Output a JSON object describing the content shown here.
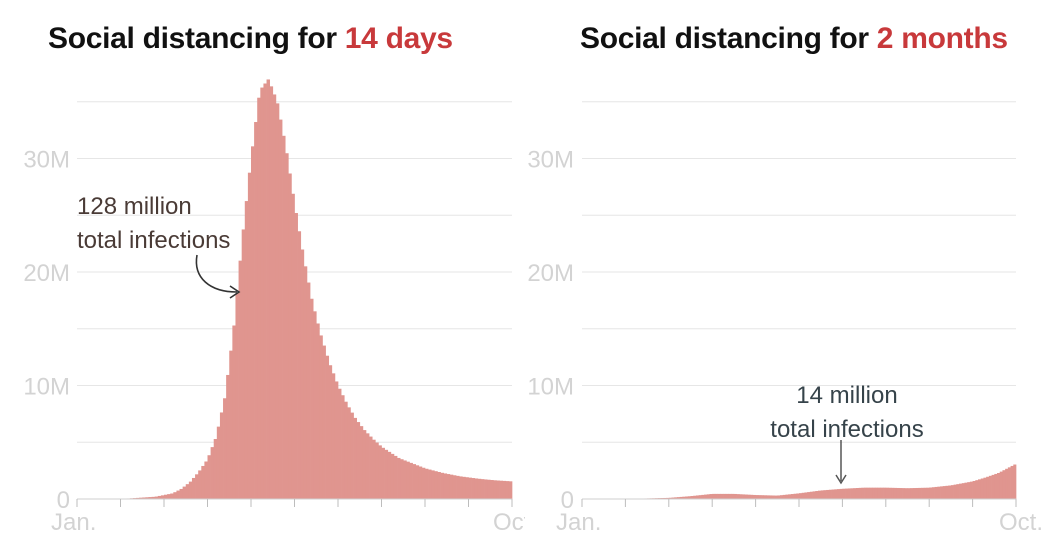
{
  "colors": {
    "bar": "#e0958f",
    "highlight": "#c8393b",
    "grid": "#e6e6e6",
    "axis_text": "#d3d3d3",
    "note_left": "#4a3b36",
    "note_right": "#36434a"
  },
  "chart_data": [
    {
      "type": "area",
      "title_prefix": "Social distancing for ",
      "title_highlight": "14 days",
      "xlabel": "",
      "ylabel": "",
      "x_tick_labels": [
        "Jan.",
        "Oct."
      ],
      "y_ticks": [
        0,
        10,
        20,
        30
      ],
      "y_tick_labels": [
        "0",
        "10M",
        "20M",
        "30M"
      ],
      "ylim": [
        0,
        35
      ],
      "grid": true,
      "annotation": {
        "line1": "128 million",
        "line2": "total infections"
      },
      "x": [
        0,
        0.02,
        0.04,
        0.06,
        0.08,
        0.1,
        0.12,
        0.14,
        0.16,
        0.18,
        0.2,
        0.22,
        0.24,
        0.26,
        0.28,
        0.3,
        0.32,
        0.34,
        0.36,
        0.38,
        0.4,
        0.42,
        0.44,
        0.46,
        0.48,
        0.5,
        0.52,
        0.54,
        0.56,
        0.58,
        0.6,
        0.62,
        0.64,
        0.66,
        0.68,
        0.7,
        0.72,
        0.74,
        0.76,
        0.78,
        0.8,
        0.82,
        0.84,
        0.86,
        0.88,
        0.9,
        0.92,
        0.94,
        0.96,
        0.98,
        1.0
      ],
      "values": [
        0,
        0,
        0,
        0,
        0,
        0.02,
        0.05,
        0.1,
        0.15,
        0.2,
        0.35,
        0.5,
        0.9,
        1.5,
        2.4,
        3.5,
        5.5,
        9,
        15,
        23,
        30,
        36,
        37,
        35,
        31,
        26,
        21.5,
        17.5,
        14.5,
        12,
        10,
        8.4,
        7.1,
        6.1,
        5.3,
        4.6,
        4.1,
        3.6,
        3.3,
        3.0,
        2.7,
        2.5,
        2.3,
        2.15,
        2.0,
        1.9,
        1.8,
        1.72,
        1.65,
        1.6,
        1.55
      ]
    },
    {
      "type": "area",
      "title_prefix": "Social distancing for ",
      "title_highlight": "2 months",
      "xlabel": "",
      "ylabel": "",
      "x_tick_labels": [
        "Jan.",
        "Oct."
      ],
      "y_ticks": [
        0,
        10,
        20,
        30
      ],
      "y_tick_labels": [
        "0",
        "10M",
        "20M",
        "30M"
      ],
      "ylim": [
        0,
        35
      ],
      "grid": true,
      "annotation": {
        "line1": "14 million",
        "line2": "total infections"
      },
      "x": [
        0,
        0.05,
        0.1,
        0.15,
        0.2,
        0.25,
        0.3,
        0.35,
        0.4,
        0.45,
        0.5,
        0.55,
        0.6,
        0.65,
        0.7,
        0.75,
        0.8,
        0.85,
        0.9,
        0.93,
        0.96,
        0.98,
        1.0
      ],
      "values": [
        0,
        0,
        0,
        0.05,
        0.1,
        0.25,
        0.45,
        0.45,
        0.35,
        0.3,
        0.5,
        0.75,
        0.9,
        1.0,
        1.0,
        0.95,
        1.0,
        1.2,
        1.55,
        1.9,
        2.3,
        2.7,
        3.1
      ]
    }
  ]
}
